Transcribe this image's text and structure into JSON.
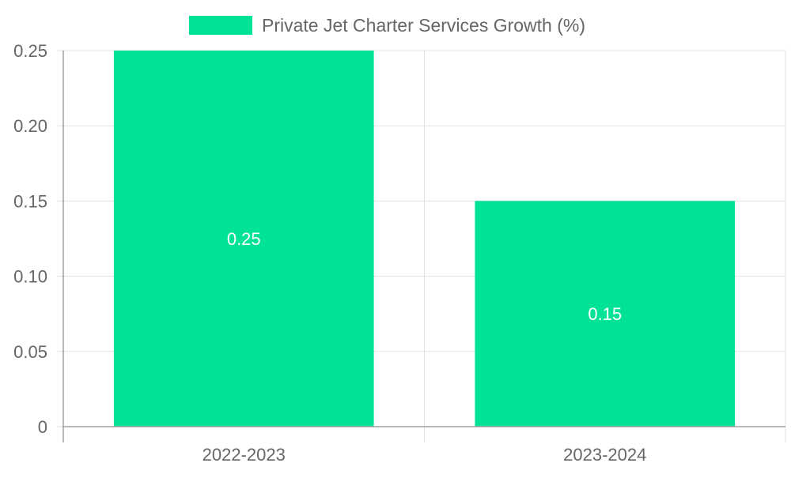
{
  "chart_data": {
    "type": "bar",
    "title": "",
    "legend": {
      "label": "Private Jet Charter Services Growth (%)",
      "position": "top"
    },
    "categories": [
      "2022-2023",
      "2023-2024"
    ],
    "series": [
      {
        "name": "Private Jet Charter Services Growth (%)",
        "values": [
          0.25,
          0.15
        ]
      }
    ],
    "data_labels": [
      "0.25",
      "0.15"
    ],
    "y_ticks": [
      "0",
      "0.05",
      "0.10",
      "0.15",
      "0.20",
      "0.25"
    ],
    "y_tick_values": [
      0,
      0.05,
      0.1,
      0.15,
      0.2,
      0.25
    ],
    "ylim": [
      0,
      0.25
    ],
    "xlabel": "",
    "ylabel": "",
    "grid": true
  },
  "colors": {
    "bar": "#00e396",
    "grid": "#e0e0e0",
    "axis": "#a0a0a0",
    "tick_text": "#666666",
    "data_label": "#ffffff",
    "legend_text": "#666666"
  }
}
